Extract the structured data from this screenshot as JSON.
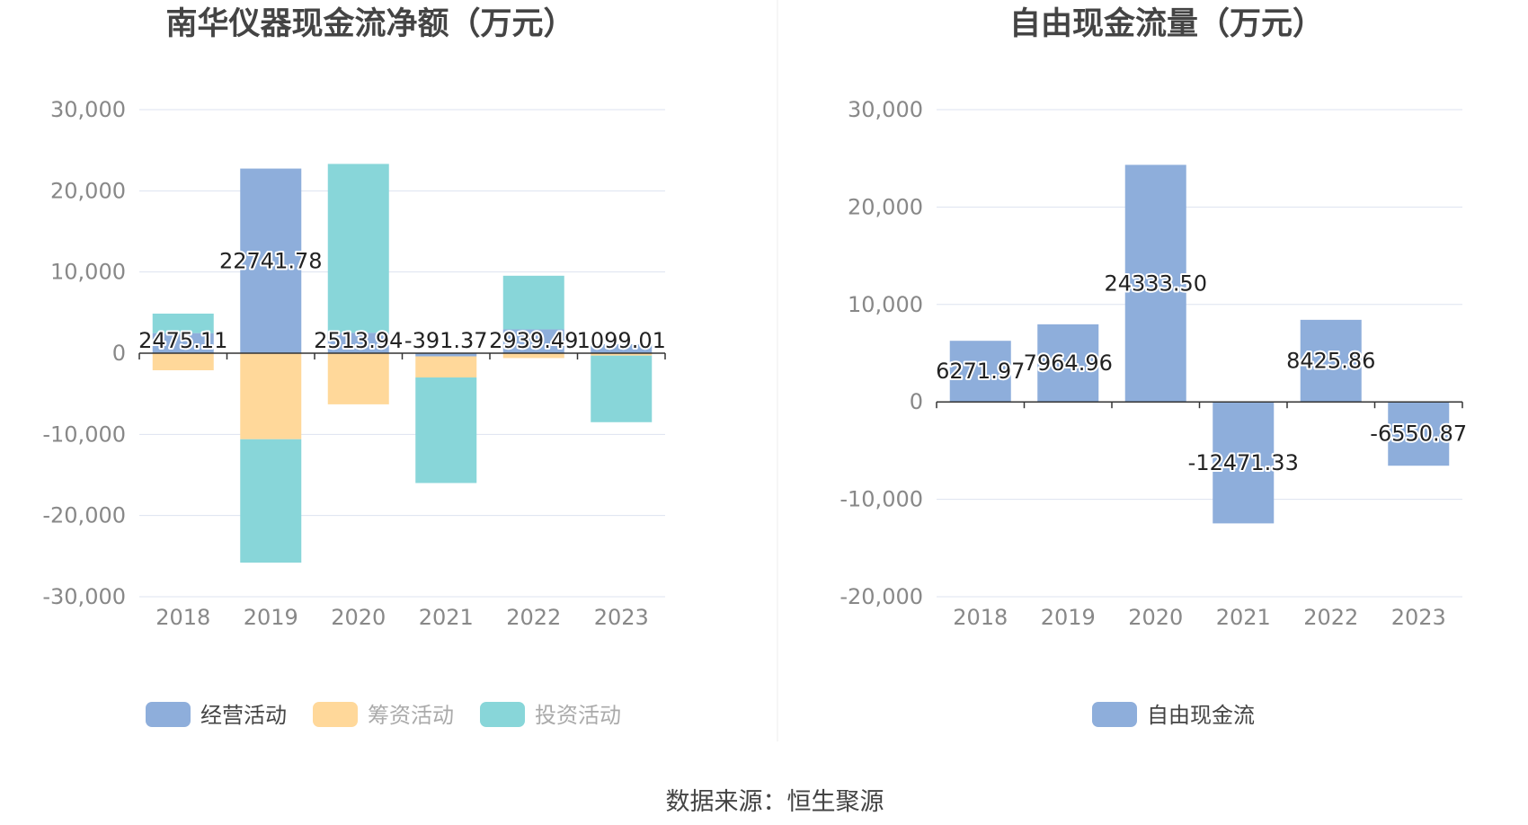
{
  "source_text": "数据来源：恒生聚源",
  "colors": {
    "operating": "#8eaedb",
    "financing": "#ffd89a",
    "investing": "#88d6d9",
    "free_cash_flow": "#8eaedb",
    "grid": "#dde3f0",
    "axis": "#333333"
  },
  "chart_data": [
    {
      "type": "bar",
      "stacked": true,
      "title": "南华仪器现金流净额（万元）",
      "categories": [
        "2018",
        "2019",
        "2020",
        "2021",
        "2022",
        "2023"
      ],
      "ylim": [
        -30000,
        30000
      ],
      "yticks": [
        "30,000",
        "20,000",
        "10,000",
        "0",
        "-10,000",
        "-20,000",
        "-30,000"
      ],
      "ytick_values": [
        30000,
        20000,
        10000,
        0,
        -10000,
        -20000,
        -30000
      ],
      "grid": true,
      "legend_position": "bottom",
      "series": [
        {
          "name": "经营活动",
          "color": "#8eaedb",
          "values": [
            2475.11,
            22741.78,
            2513.94,
            -391.37,
            2939.49,
            1099.01
          ]
        },
        {
          "name": "筹资活动",
          "color": "#ffd89a",
          "values": [
            -2100,
            -10600,
            -6300,
            -2600,
            -600,
            -300
          ]
        },
        {
          "name": "投资活动",
          "color": "#88d6d9",
          "values": [
            2400,
            -15200,
            20800,
            -13000,
            6600,
            -8200
          ]
        }
      ],
      "data_labels": [
        "2475.11",
        "22741.78",
        "2513.94",
        "-391.37",
        "2939.49",
        "1099.01"
      ]
    },
    {
      "type": "bar",
      "stacked": false,
      "title": "自由现金流量（万元）",
      "categories": [
        "2018",
        "2019",
        "2020",
        "2021",
        "2022",
        "2023"
      ],
      "ylim": [
        -20000,
        30000
      ],
      "yticks": [
        "30,000",
        "20,000",
        "10,000",
        "0",
        "-10,000",
        "-20,000"
      ],
      "ytick_values": [
        30000,
        20000,
        10000,
        0,
        -10000,
        -20000
      ],
      "grid": true,
      "legend_position": "bottom",
      "series": [
        {
          "name": "自由现金流",
          "color": "#8eaedb",
          "values": [
            6271.97,
            7964.96,
            24333.5,
            -12471.33,
            8425.86,
            -6550.87
          ]
        }
      ],
      "data_labels": [
        "6271.97",
        "7964.96",
        "24333.50",
        "-12471.33",
        "8425.86",
        "-6550.87"
      ]
    }
  ]
}
